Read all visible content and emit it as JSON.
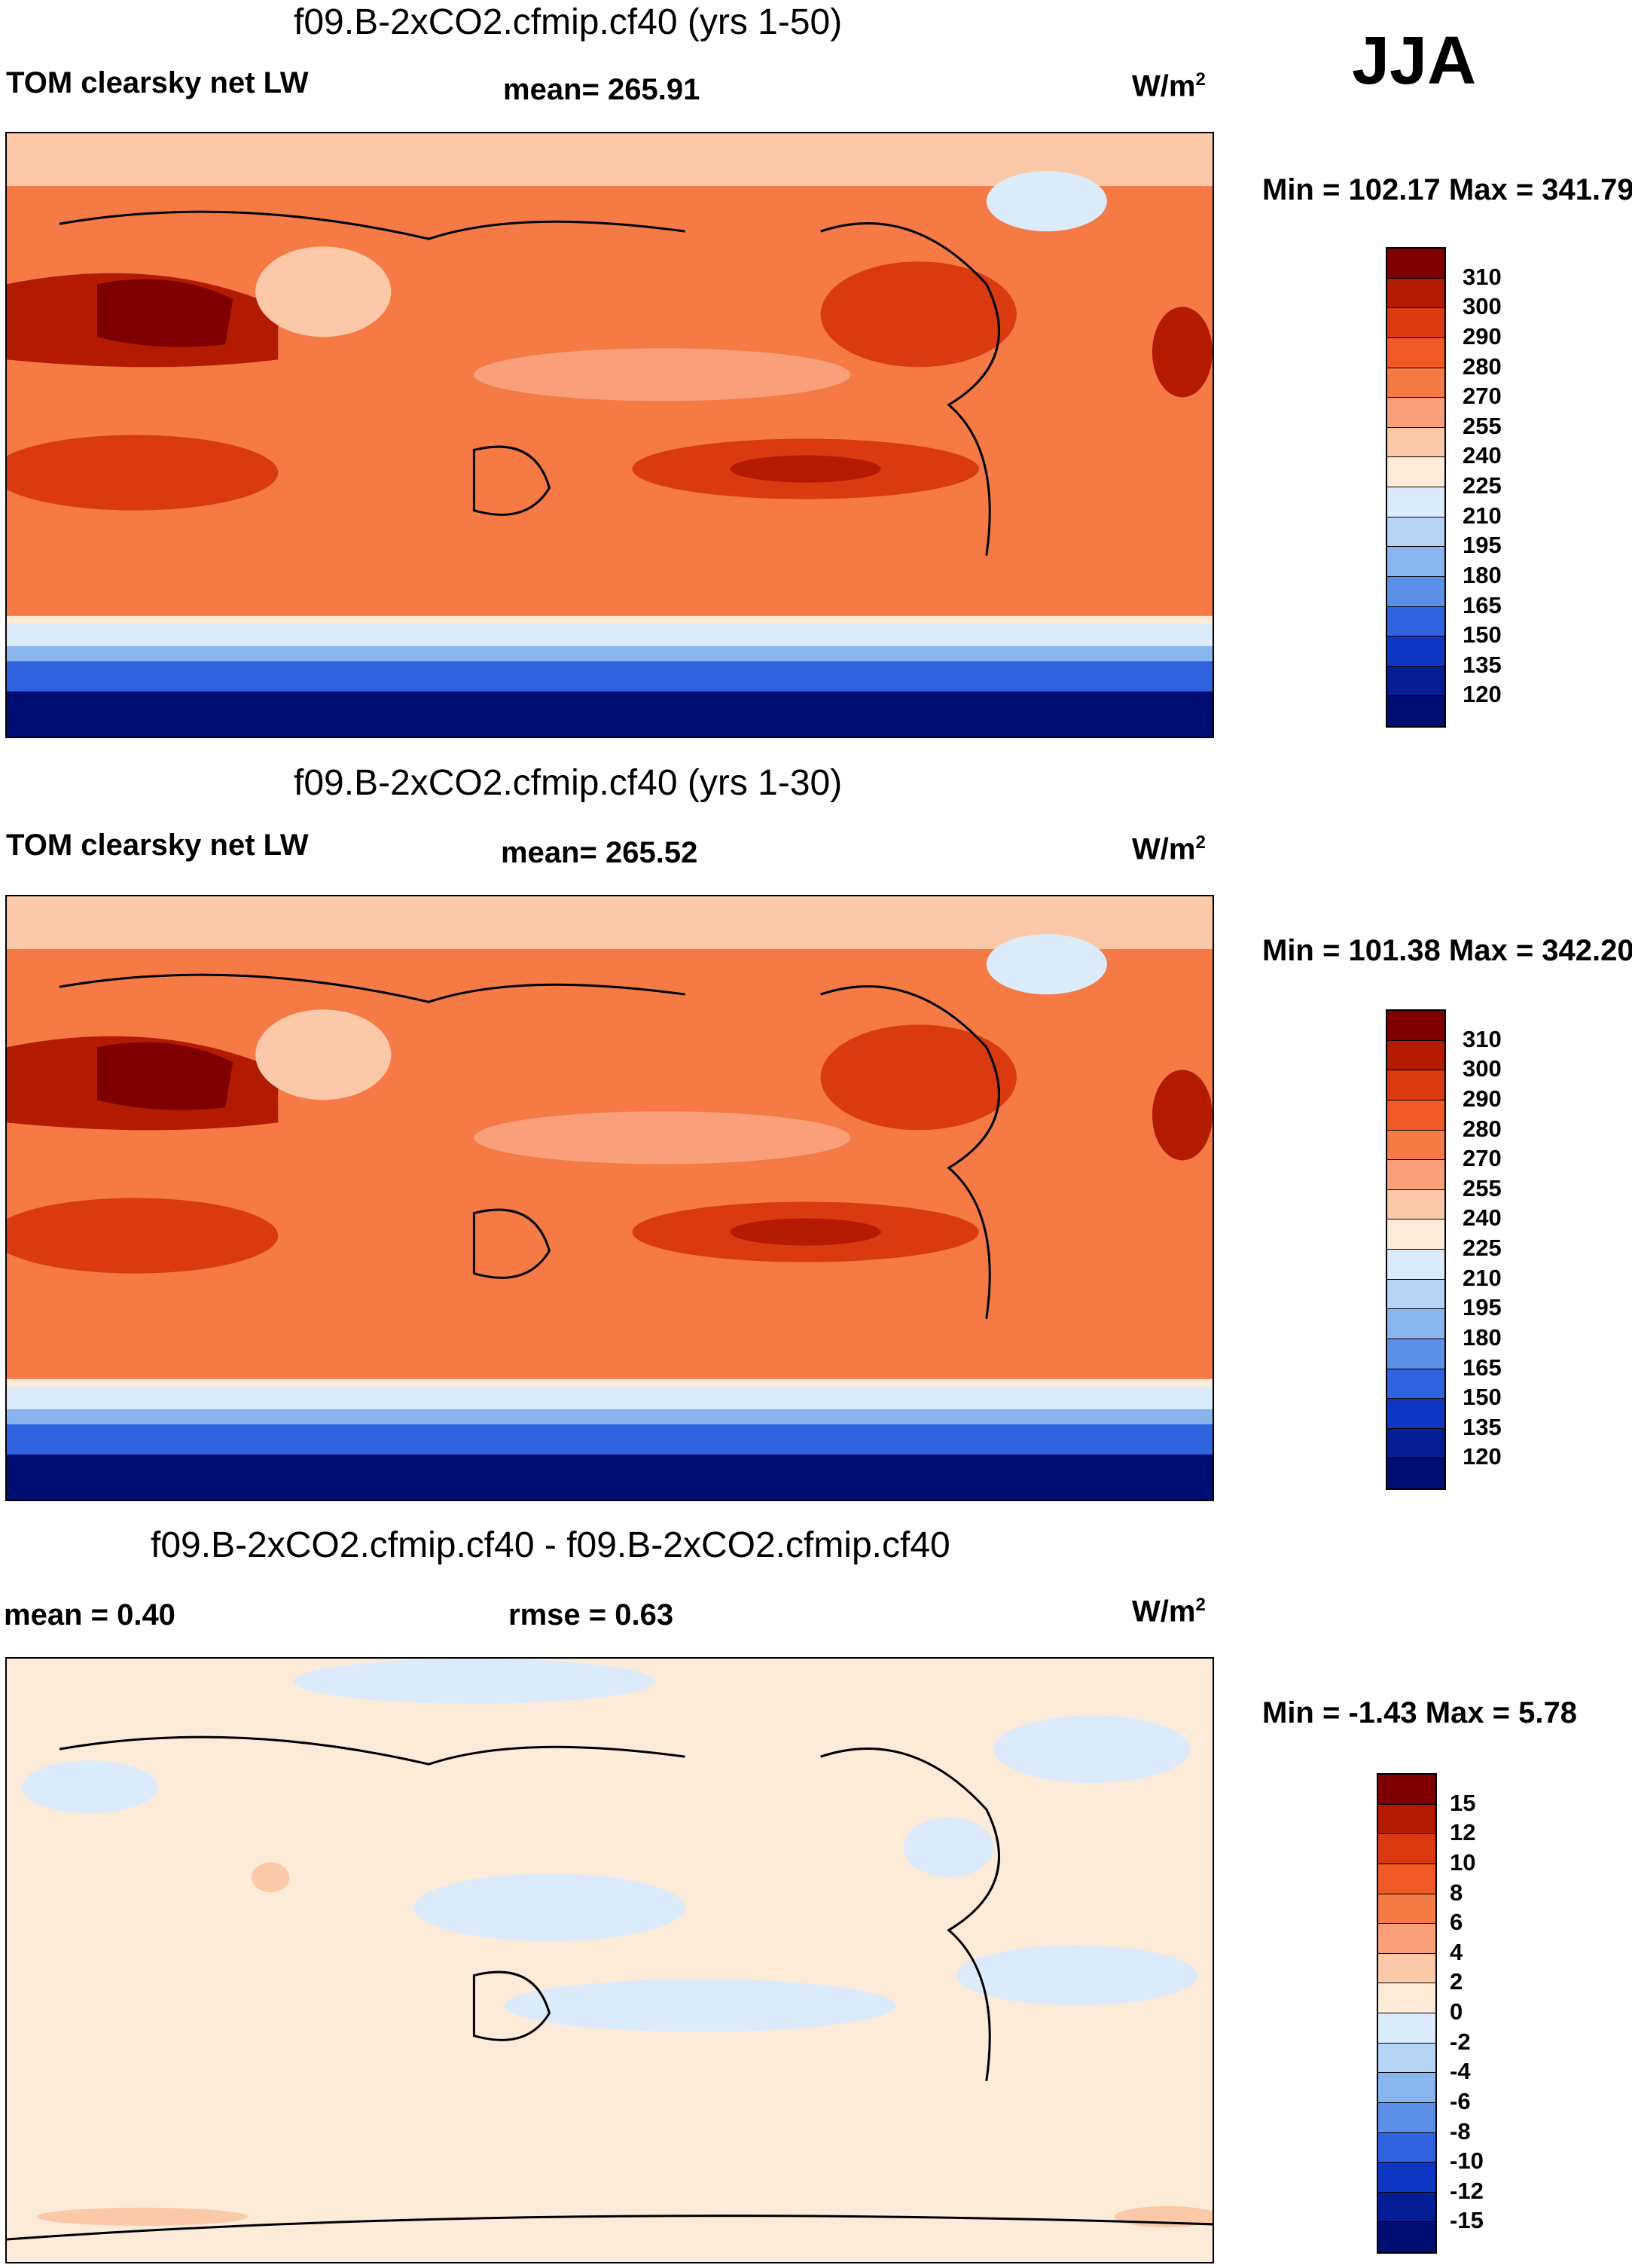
{
  "season": "JJA",
  "units_base": "W/m",
  "units_exp": "2",
  "panels": [
    {
      "title": "f09.B-2xCO2.cfmip.cf40 (yrs 1-50)",
      "left_label": "TOM clearsky net LW",
      "center_label": "mean= 265.91",
      "minmax": "Min = 102.17 Max = 341.79"
    },
    {
      "title": "f09.B-2xCO2.cfmip.cf40 (yrs 1-30)",
      "left_label": "TOM clearsky net LW",
      "center_label": "mean= 265.52",
      "minmax": "Min = 101.38 Max = 342.20"
    },
    {
      "title": "f09.B-2xCO2.cfmip.cf40 - f09.B-2xCO2.cfmip.cf40",
      "left_label": "mean =   0.40",
      "center_label": "rmse =   0.63",
      "minmax": "Min =  -1.43 Max =   5.78"
    }
  ],
  "colorbar_abs": {
    "labels": [
      "310",
      "300",
      "290",
      "280",
      "270",
      "255",
      "240",
      "225",
      "210",
      "195",
      "180",
      "165",
      "150",
      "135",
      "120"
    ],
    "colors": [
      "#7f0000",
      "#b31b00",
      "#d93a12",
      "#f05a26",
      "#f57a45",
      "#f9a07a",
      "#fcc9a8",
      "#fdebd9",
      "#dcebfa",
      "#b5d3f5",
      "#89b5ee",
      "#5b8fe8",
      "#2f63e0",
      "#1036c4",
      "#051e96",
      "#000d73"
    ]
  },
  "colorbar_diff": {
    "labels": [
      "15",
      "12",
      "10",
      "8",
      "6",
      "4",
      "2",
      "0",
      "-2",
      "-4",
      "-6",
      "-8",
      "-10",
      "-12",
      "-15"
    ],
    "colors": [
      "#7f0000",
      "#b31b00",
      "#d93a12",
      "#f05a26",
      "#f57a45",
      "#f9a07a",
      "#fcc9a8",
      "#fdebd9",
      "#dcebfa",
      "#b5d3f5",
      "#89b5ee",
      "#5b8fe8",
      "#2f63e0",
      "#1036c4",
      "#051e96",
      "#000d73"
    ]
  }
}
